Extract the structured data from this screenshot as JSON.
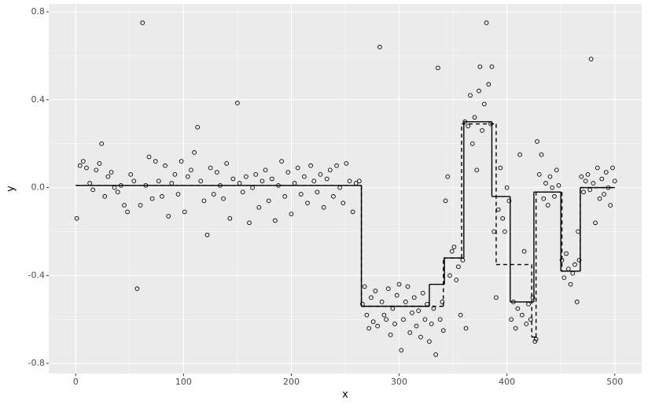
{
  "chart_data": {
    "type": "scatter",
    "x_label": "x",
    "y_label": "y",
    "xlim": [
      -25,
      525
    ],
    "ylim": [
      -0.846,
      0.836
    ],
    "xticks": [
      0,
      100,
      200,
      300,
      400,
      500
    ],
    "yticks": [
      -0.8,
      -0.4,
      {
        "value": 0,
        "label": "0.0"
      },
      0.4,
      0.8
    ],
    "minor_xticks": [
      50,
      150,
      250,
      350,
      450
    ],
    "minor_yticks": [
      -0.6,
      -0.2,
      0.2,
      0.6
    ],
    "grid": true,
    "panel_color": "#ebebeb",
    "point_color": "#000000",
    "points": {
      "x": [
        1,
        4,
        7,
        10,
        13,
        16,
        19,
        22,
        24,
        27,
        30,
        33,
        36,
        39,
        42,
        45,
        48,
        51,
        54,
        57,
        60,
        62,
        65,
        68,
        71,
        74,
        77,
        80,
        83,
        86,
        89,
        92,
        95,
        98,
        101,
        104,
        107,
        110,
        113,
        116,
        119,
        122,
        125,
        128,
        131,
        134,
        137,
        140,
        143,
        146,
        150,
        152,
        155,
        158,
        161,
        164,
        167,
        170,
        173,
        176,
        179,
        182,
        185,
        188,
        191,
        194,
        197,
        200,
        203,
        206,
        209,
        212,
        215,
        218,
        221,
        224,
        227,
        230,
        233,
        236,
        239,
        242,
        245,
        248,
        251,
        254,
        257,
        260,
        263,
        266,
        268,
        270,
        272,
        274,
        276,
        278,
        280,
        282,
        284,
        286,
        288,
        290,
        292,
        294,
        296,
        298,
        300,
        302,
        304,
        306,
        308,
        310,
        312,
        314,
        316,
        318,
        320,
        322,
        324,
        326,
        328,
        330,
        332,
        334,
        336,
        338,
        340,
        341,
        343,
        345,
        347,
        349,
        351,
        353,
        355,
        357,
        359,
        361,
        362,
        364,
        366,
        368,
        370,
        372,
        374,
        375,
        377,
        379,
        381,
        383,
        385,
        386,
        388,
        390,
        392,
        394,
        396,
        398,
        400,
        402,
        404,
        406,
        408,
        410,
        412,
        414,
        416,
        418,
        420,
        422,
        424,
        426,
        427,
        428,
        430,
        432,
        434,
        436,
        438,
        440,
        442,
        444,
        446,
        448,
        451,
        453,
        455,
        457,
        459,
        461,
        463,
        465,
        466,
        467,
        469,
        471,
        473,
        475,
        477,
        478,
        480,
        482,
        484,
        486,
        488,
        490,
        492,
        494,
        496,
        498,
        500
      ],
      "values": [
        -0.14,
        0.1,
        0.12,
        0.09,
        0.02,
        -0.01,
        0.08,
        0.11,
        0.2,
        -0.04,
        0.05,
        0.07,
        0.0,
        -0.02,
        0.01,
        -0.08,
        -0.11,
        0.06,
        0.03,
        -0.46,
        -0.08,
        0.75,
        0.01,
        0.14,
        -0.05,
        0.12,
        0.03,
        -0.04,
        0.1,
        -0.13,
        0.02,
        0.06,
        -0.03,
        0.12,
        -0.11,
        0.05,
        0.08,
        0.16,
        0.275,
        0.03,
        -0.06,
        -0.215,
        0.09,
        -0.03,
        0.07,
        0.01,
        -0.05,
        0.11,
        -0.14,
        0.04,
        0.385,
        0.02,
        -0.02,
        0.05,
        -0.16,
        0.0,
        0.06,
        -0.09,
        0.03,
        0.08,
        -0.06,
        0.04,
        -0.15,
        0.01,
        0.12,
        -0.04,
        0.07,
        -0.12,
        0.02,
        0.09,
        -0.03,
        0.05,
        -0.07,
        0.1,
        0.03,
        -0.02,
        0.06,
        -0.09,
        0.04,
        0.08,
        -0.04,
        0.1,
        0.0,
        -0.07,
        0.11,
        0.03,
        -0.11,
        0.02,
        0.03,
        -0.53,
        -0.45,
        -0.58,
        -0.64,
        -0.5,
        -0.61,
        -0.47,
        -0.63,
        0.64,
        -0.52,
        -0.58,
        -0.6,
        -0.46,
        -0.67,
        -0.55,
        -0.62,
        -0.49,
        -0.44,
        -0.74,
        -0.6,
        -0.52,
        -0.45,
        -0.66,
        -0.57,
        -0.5,
        -0.63,
        -0.56,
        -0.68,
        -0.48,
        -0.6,
        -0.53,
        -0.7,
        -0.62,
        -0.55,
        -0.76,
        0.545,
        -0.6,
        -0.52,
        -0.65,
        -0.06,
        0.05,
        -0.4,
        -0.29,
        -0.27,
        -0.42,
        -0.36,
        -0.58,
        -0.33,
        0.3,
        -0.64,
        0.28,
        0.42,
        0.2,
        0.32,
        0.08,
        0.44,
        0.55,
        0.26,
        0.38,
        0.75,
        0.47,
        0.29,
        0.55,
        -0.2,
        -0.5,
        -0.1,
        0.09,
        -0.14,
        -0.2,
        0.0,
        -0.06,
        -0.6,
        -0.52,
        -0.64,
        -0.55,
        0.15,
        -0.58,
        -0.29,
        -0.62,
        -0.53,
        -0.6,
        -0.5,
        -0.7,
        -0.69,
        0.21,
        0.06,
        0.15,
        -0.05,
        0.02,
        -0.08,
        0.05,
        0.0,
        -0.04,
        0.08,
        0.01,
        -0.33,
        -0.41,
        -0.3,
        -0.37,
        -0.44,
        -0.39,
        -0.35,
        -0.52,
        -0.2,
        -0.33,
        0.05,
        -0.02,
        0.03,
        0.06,
        -0.01,
        0.585,
        0.02,
        -0.16,
        0.09,
        -0.05,
        0.04,
        -0.03,
        0.07,
        0.0,
        -0.08,
        0.09,
        0.03
      ]
    },
    "lines": [
      {
        "linetype": "solid",
        "color": "#000000",
        "x": [
          0,
          265,
          328,
          342,
          360,
          386,
          403,
          425,
          450,
          468,
          500
        ],
        "values": [
          0.01,
          -0.54,
          -0.44,
          -0.32,
          0.3,
          -0.04,
          -0.52,
          -0.02,
          -0.38,
          0,
          0
        ]
      },
      {
        "linetype": "dashed",
        "color": "#000000",
        "x": [
          0,
          265,
          341,
          358,
          390,
          423,
          427,
          451,
          468,
          500
        ],
        "values": [
          0.01,
          -0.54,
          -0.32,
          0.29,
          -0.35,
          -0.68,
          -0.02,
          -0.38,
          0,
          0
        ]
      }
    ]
  }
}
